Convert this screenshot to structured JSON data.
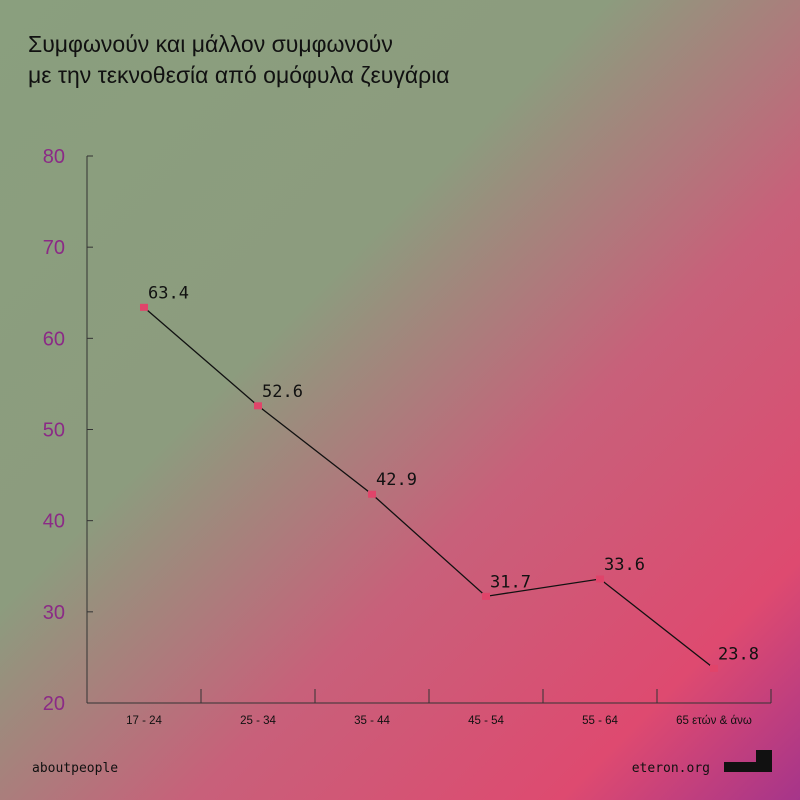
{
  "chart_data": {
    "type": "line",
    "title": [
      "Συμφωνούν και μάλλον συμφωνούν",
      "με την τεκνοθεσία από ομόφυλα ζευγάρια"
    ],
    "categories": [
      "17 - 24",
      "25 - 34",
      "35 - 44",
      "45 - 54",
      "55 - 64",
      "65 ετών & άνω"
    ],
    "values": [
      63.4,
      52.6,
      42.9,
      31.7,
      33.6,
      23.8
    ],
    "color": "#e0446a",
    "line_color": "#111111",
    "ylim": [
      20,
      80
    ],
    "yticks": [
      20,
      30,
      40,
      50,
      60,
      70,
      80
    ]
  },
  "footer": {
    "left": "aboutpeople",
    "right": "eteron.org"
  }
}
